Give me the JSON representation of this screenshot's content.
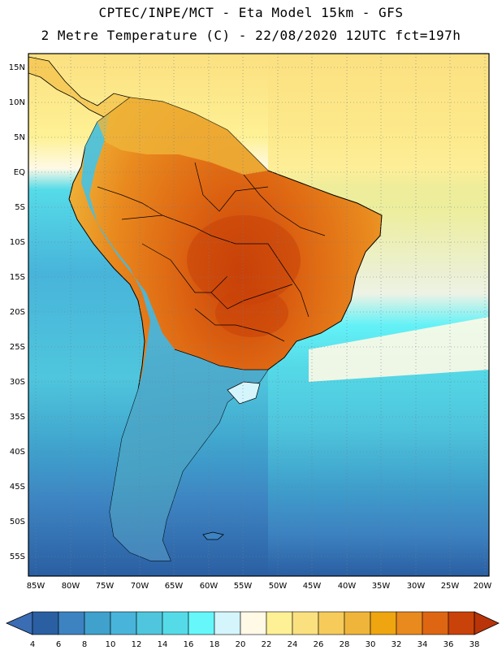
{
  "header": {
    "line1": "CPTEC/INPE/MCT  -  Eta Model 15km - GFS",
    "line2": "2 Metre Temperature (C) - 22/08/2020 12UTC fct=197h"
  },
  "map": {
    "lat_labels": [
      "15N",
      "10N",
      "5N",
      "EQ",
      "5S",
      "10S",
      "15S",
      "20S",
      "25S",
      "30S",
      "35S",
      "40S",
      "45S",
      "50S",
      "55S"
    ],
    "lon_labels": [
      "85W",
      "80W",
      "75W",
      "70W",
      "65W",
      "60W",
      "55W",
      "50W",
      "45W",
      "40W",
      "35W",
      "30W",
      "25W",
      "20W"
    ]
  },
  "colorbar": {
    "ticks": [
      "4",
      "6",
      "8",
      "10",
      "12",
      "14",
      "16",
      "18",
      "20",
      "22",
      "24",
      "26",
      "28",
      "30",
      "32",
      "34",
      "36",
      "38"
    ],
    "colors": [
      "#2a5fa2",
      "#3d83c2",
      "#3fa1cc",
      "#48b4da",
      "#4fc6dd",
      "#55dbe8",
      "#66f7fa",
      "#d4f5fc",
      "#fff9e6",
      "#fef195",
      "#fbe080",
      "#f6cb5a",
      "#efb53a",
      "#eea510",
      "#e98a1e",
      "#de6612",
      "#c94209"
    ],
    "low_color": "#3a6db4",
    "high_color": "#b93408"
  }
}
